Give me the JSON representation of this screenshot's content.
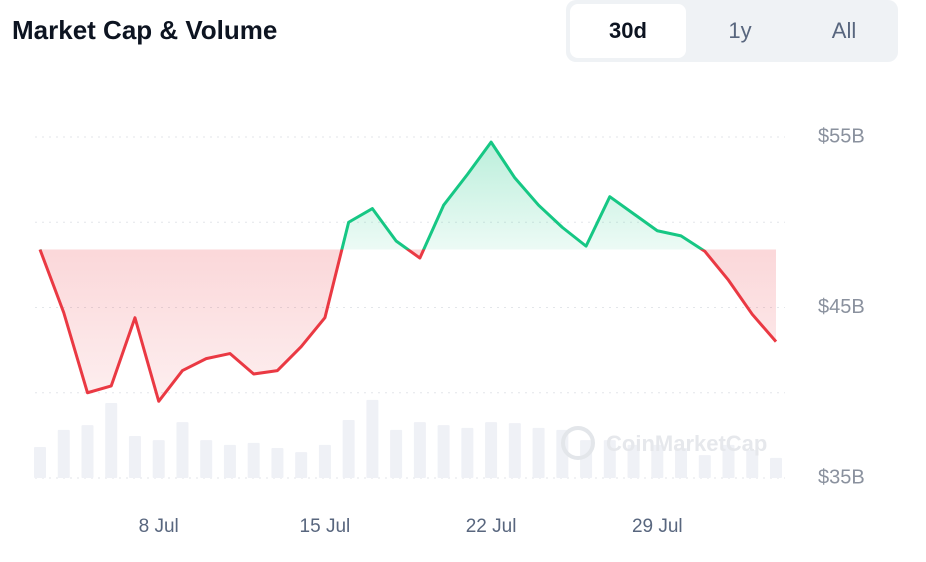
{
  "header": {
    "title": "Market Cap & Volume",
    "tabs": [
      "30d",
      "1y",
      "All"
    ],
    "active_tab": 0
  },
  "chart_data": {
    "type": "line",
    "watermark": "CoinMarketCap",
    "categories": [
      null,
      null,
      null,
      null,
      null,
      "8 Jul",
      null,
      null,
      null,
      null,
      null,
      null,
      "15 Jul",
      null,
      null,
      null,
      null,
      null,
      null,
      "22 Jul",
      null,
      null,
      null,
      null,
      null,
      null,
      "29 Jul",
      null,
      null,
      null,
      null,
      null
    ],
    "series": [
      {
        "name": "Market Cap",
        "color_up": "#16c784",
        "color_down": "#ea3943",
        "values": [
          48.4,
          44.7,
          40.0,
          40.4,
          44.4,
          39.5,
          41.3,
          42.0,
          42.3,
          41.1,
          41.3,
          42.7,
          44.4,
          50.0,
          50.8,
          48.9,
          47.9,
          51.0,
          52.8,
          54.7,
          52.6,
          51.0,
          49.7,
          48.6,
          51.5,
          50.5,
          49.5,
          49.2,
          48.3,
          46.6,
          44.6,
          43.0
        ]
      },
      {
        "name": "Volume",
        "type": "bar",
        "axis": "y2",
        "color": "#eff1f6",
        "values": [
          9.1,
          14.1,
          15.5,
          22.0,
          12.3,
          11.1,
          16.4,
          11.1,
          9.7,
          10.3,
          8.8,
          7.6,
          9.7,
          17.0,
          22.9,
          14.1,
          16.4,
          15.5,
          14.7,
          16.4,
          16.1,
          14.7,
          14.1,
          11.1,
          11.1,
          9.7,
          9.7,
          8.8,
          6.7,
          9.7,
          8.2,
          5.9
        ]
      }
    ],
    "baseline": 48.4,
    "ylim": [
      35,
      55
    ],
    "yticks": [
      {
        "value": 35,
        "label": "$35B"
      },
      {
        "value": 45,
        "label": "$45B"
      },
      {
        "value": 55,
        "label": "$55B"
      }
    ],
    "minor_yticks": [
      40,
      50
    ],
    "y2lim": [
      0,
      100
    ],
    "grid": true
  }
}
